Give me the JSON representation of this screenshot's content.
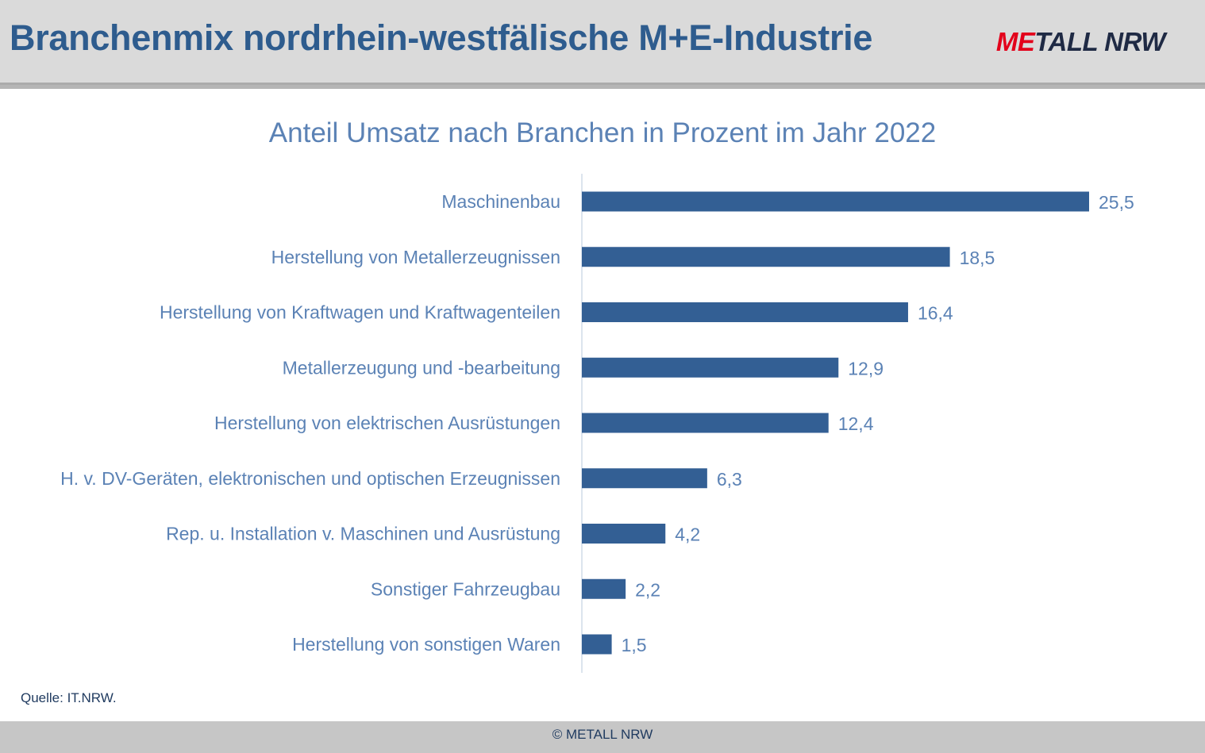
{
  "header": {
    "title": "Branchenmix nordrhein-westfälische M+E-Industrie",
    "logo_part1": "ME",
    "logo_part2": "TALL NRW"
  },
  "chart_data": {
    "type": "bar",
    "orientation": "horizontal",
    "title": "Anteil Umsatz nach Branchen in Prozent im Jahr 2022",
    "categories": [
      "Maschinenbau",
      "Herstellung von Metallerzeugnissen",
      "Herstellung von  Kraftwagen und Kraftwagenteilen",
      "Metallerzeugung und -bearbeitung",
      "Herstellung von elektrischen Ausrüstungen",
      "H. v. DV-Geräten, elektronischen und optischen Erzeugnissen",
      "Rep. u. Installation v. Maschinen und Ausrüstung",
      "Sonstiger Fahrzeugbau",
      "Herstellung von sonstigen Waren"
    ],
    "values": [
      25.5,
      18.5,
      16.4,
      12.9,
      12.4,
      6.3,
      4.2,
      2.2,
      1.5
    ],
    "value_labels": [
      "25,5",
      "18,5",
      "16,4",
      "12,9",
      "12,4",
      "6,3",
      "4,2",
      "2,2",
      "1,5"
    ],
    "xlim": [
      0,
      30
    ],
    "grid": false,
    "legend": "none",
    "colors": {
      "bar": "#335f94",
      "label": "#5b82b5",
      "axis": "#d0dce8"
    }
  },
  "footer": {
    "source": "Quelle: IT.NRW.",
    "copyright": "© METALL NRW"
  }
}
